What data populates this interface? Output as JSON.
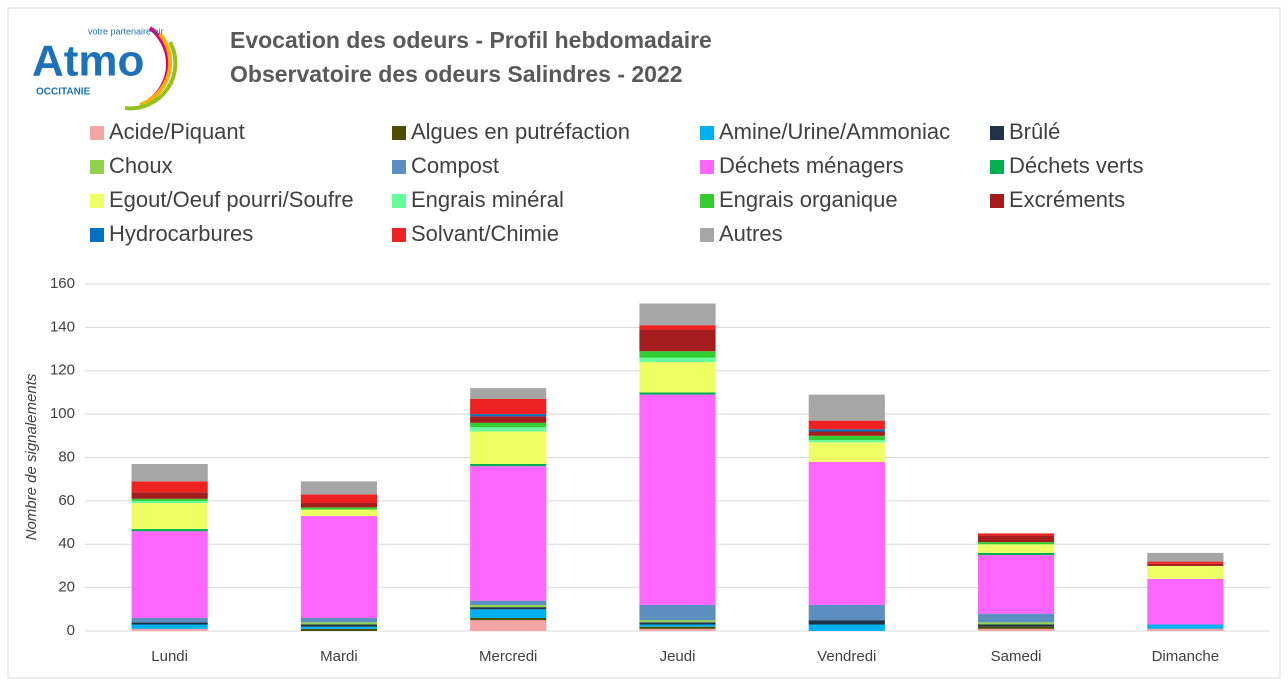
{
  "logo": {
    "brand": "Atmo",
    "tagline": "votre partenaire air",
    "region": "OCCITANIE"
  },
  "chart_data": {
    "type": "stacked_bar",
    "title": "Evocation des odeurs - Profil hebdomadaire",
    "subtitle": "Observatoire des odeurs Salindres - 2022",
    "y_label": "Nombre de signalements",
    "categories": [
      "Lundi",
      "Mardi",
      "Mercredi",
      "Jeudi",
      "Vendredi",
      "Samedi",
      "Dimanche"
    ],
    "ylim": [
      0,
      160
    ],
    "yticks": [
      0,
      20,
      40,
      60,
      80,
      100,
      120,
      140,
      160
    ],
    "grid": true,
    "series": [
      {
        "name": "Acide/Piquant",
        "color": "#f4a6a6",
        "values": [
          1,
          0,
          5,
          1,
          0,
          1,
          1
        ]
      },
      {
        "name": "Algues en putréfaction",
        "color": "#4d4d00",
        "values": [
          0,
          1,
          1,
          1,
          0,
          1,
          0
        ]
      },
      {
        "name": "Amine/Urine/Ammoniac",
        "color": "#00b0f0",
        "values": [
          2,
          1,
          4,
          1,
          3,
          0,
          2
        ]
      },
      {
        "name": "Brûlé",
        "color": "#1f3349",
        "values": [
          1,
          1,
          1,
          1,
          2,
          1,
          0
        ]
      },
      {
        "name": "Choux",
        "color": "#92d050",
        "values": [
          0,
          1,
          1,
          1,
          0,
          1,
          0
        ]
      },
      {
        "name": "Compost",
        "color": "#5b8fc0",
        "values": [
          2,
          2,
          2,
          7,
          7,
          4,
          0
        ]
      },
      {
        "name": "Déchets ménagers",
        "color": "#ff66ff",
        "values": [
          40,
          47,
          62,
          97,
          66,
          27,
          21
        ]
      },
      {
        "name": "Déchets verts",
        "color": "#00b050",
        "values": [
          1,
          0,
          1,
          1,
          0,
          1,
          0
        ]
      },
      {
        "name": "Egout/Oeuf pourri/Soufre",
        "color": "#eeff66",
        "values": [
          12,
          3,
          15,
          14,
          9,
          4,
          6
        ]
      },
      {
        "name": "Engrais minéral",
        "color": "#66ff99",
        "values": [
          1,
          0,
          2,
          2,
          1,
          0,
          0
        ]
      },
      {
        "name": "Engrais organique",
        "color": "#33cc33",
        "values": [
          1,
          1,
          2,
          3,
          2,
          1,
          0
        ]
      },
      {
        "name": "Excréments",
        "color": "#a51c1c",
        "values": [
          3,
          2,
          3,
          10,
          2,
          3,
          1
        ]
      },
      {
        "name": "Hydrocarbures",
        "color": "#0070c0",
        "values": [
          0,
          0,
          1,
          0,
          1,
          0,
          0
        ]
      },
      {
        "name": "Solvant/Chimie",
        "color": "#ee2222",
        "values": [
          5,
          4,
          7,
          2,
          4,
          1,
          1
        ]
      },
      {
        "name": "Autres",
        "color": "#a6a6a6",
        "values": [
          8,
          6,
          5,
          10,
          12,
          0,
          4
        ]
      }
    ]
  }
}
